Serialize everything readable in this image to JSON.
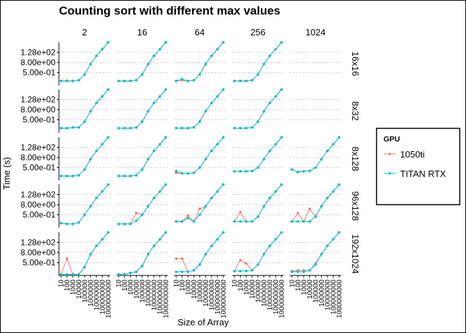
{
  "chart_data": {
    "type": "line",
    "title": "Counting sort with different max values",
    "xlabel": "Size of Array",
    "ylabel": "Time (s)",
    "x": [
      "10",
      "100",
      "1000",
      "10000",
      "100000",
      "1000000",
      "10000000",
      "100000000",
      "1000000000"
    ],
    "y_ticks": [
      "5.00e-01",
      "8.00e+00",
      "1.28e+02"
    ],
    "y_scale": "log",
    "grid": "horizontal dotted",
    "col_facets": [
      "2",
      "16",
      "64",
      "256",
      "1024"
    ],
    "row_facets": [
      "16x16",
      "8x32",
      "8x128",
      "96x128",
      "192x1024"
    ],
    "legend": {
      "title": "GPU",
      "position": "right",
      "entries": [
        "1050ti",
        "TITAN RTX"
      ]
    },
    "colors": {
      "1050ti": "#f8766d",
      "TITAN RTX": "#00bfc4",
      "grid": "#bdbdbd",
      "text": "#000000"
    },
    "panels": [
      [
        {
          "1050ti": [
            0.05,
            0.055,
            0.05,
            0.06,
            0.3,
            5,
            50,
            300,
            2000
          ],
          "TITAN RTX": [
            0.05,
            0.05,
            0.05,
            0.06,
            0.3,
            5,
            50,
            300,
            2000
          ]
        },
        {
          "1050ti": [
            0.05,
            0.05,
            0.05,
            0.06,
            0.3,
            5,
            50,
            300,
            2000
          ],
          "TITAN RTX": [
            0.05,
            0.05,
            0.05,
            0.06,
            0.3,
            5,
            50,
            300,
            2000
          ]
        },
        {
          "1050ti": [
            0.05,
            0.06,
            0.05,
            0.06,
            0.3,
            5,
            50,
            300,
            2000
          ],
          "TITAN RTX": [
            0.05,
            0.08,
            0.05,
            0.06,
            0.3,
            5,
            50,
            300,
            2000
          ]
        },
        {
          "1050ti": [
            0.05,
            0.05,
            0.05,
            0.06,
            0.3,
            5,
            50,
            300,
            2000
          ],
          "TITAN RTX": [
            0.05,
            0.05,
            0.05,
            0.06,
            0.3,
            5,
            50,
            300,
            2000
          ]
        },
        {
          "1050ti": [
            null,
            null,
            null,
            null,
            null,
            null,
            null,
            null,
            null
          ],
          "TITAN RTX": [
            null,
            null,
            null,
            null,
            null,
            null,
            null,
            null,
            null
          ]
        }
      ],
      [
        {
          "1050ti": [
            0.05,
            0.05,
            0.06,
            0.06,
            0.3,
            5,
            50,
            300,
            2000
          ],
          "TITAN RTX": [
            0.05,
            0.05,
            0.06,
            0.06,
            0.3,
            5,
            50,
            300,
            2000
          ]
        },
        {
          "1050ti": [
            0.05,
            0.05,
            0.05,
            0.06,
            0.3,
            5,
            50,
            300,
            2000
          ],
          "TITAN RTX": [
            0.05,
            0.05,
            0.05,
            0.06,
            0.3,
            5,
            50,
            300,
            2000
          ]
        },
        {
          "1050ti": [
            0.05,
            0.05,
            0.05,
            0.06,
            0.3,
            5,
            50,
            300,
            2000
          ],
          "TITAN RTX": [
            0.05,
            0.05,
            0.05,
            0.06,
            0.3,
            5,
            50,
            300,
            2000
          ]
        },
        {
          "1050ti": [
            0.05,
            0.05,
            0.05,
            0.06,
            0.3,
            5,
            50,
            300,
            2000
          ],
          "TITAN RTX": [
            0.05,
            0.05,
            0.05,
            0.06,
            0.3,
            5,
            50,
            300,
            2000
          ]
        },
        {
          "1050ti": [
            null,
            null,
            null,
            null,
            null,
            null,
            null,
            null,
            null
          ],
          "TITAN RTX": [
            null,
            null,
            null,
            null,
            null,
            null,
            null,
            null,
            null
          ]
        }
      ],
      [
        {
          "1050ti": [
            0.05,
            0.05,
            0.05,
            0.06,
            0.3,
            5,
            50,
            300,
            2000
          ],
          "TITAN RTX": [
            0.05,
            0.05,
            0.05,
            0.06,
            0.3,
            5,
            50,
            300,
            2000
          ]
        },
        {
          "1050ti": [
            0.05,
            0.05,
            0.05,
            0.06,
            0.3,
            5,
            50,
            300,
            2000
          ],
          "TITAN RTX": [
            0.05,
            0.05,
            0.05,
            0.06,
            0.3,
            5,
            50,
            300,
            2000
          ]
        },
        {
          "1050ti": [
            0.12,
            0.1,
            0.1,
            0.12,
            0.5,
            5,
            50,
            300,
            2000
          ],
          "TITAN RTX": [
            0.2,
            0.1,
            0.1,
            0.12,
            0.5,
            5,
            50,
            300,
            2000
          ]
        },
        {
          "1050ti": [
            0.18,
            0.18,
            0.18,
            0.2,
            0.5,
            5,
            50,
            300,
            2000
          ],
          "TITAN RTX": [
            0.18,
            0.18,
            0.18,
            0.2,
            0.5,
            5,
            50,
            300,
            2000
          ]
        },
        {
          "1050ti": [
            0.3,
            0.15,
            0.18,
            0.2,
            0.5,
            5,
            50,
            300,
            2000
          ],
          "TITAN RTX": [
            0.3,
            0.15,
            0.18,
            0.2,
            0.5,
            5,
            50,
            300,
            2000
          ]
        }
      ],
      [
        {
          "1050ti": [
            0.05,
            0.04,
            0.04,
            0.06,
            0.5,
            5,
            50,
            300,
            2000
          ],
          "TITAN RTX": [
            0.05,
            0.04,
            0.04,
            0.06,
            0.5,
            5,
            50,
            300,
            2000
          ]
        },
        {
          "1050ti": [
            0.04,
            0.04,
            0.04,
            0.8,
            0.5,
            5,
            50,
            300,
            2000
          ],
          "TITAN RTX": [
            0.04,
            0.04,
            0.04,
            0.1,
            0.5,
            5,
            50,
            300,
            2000
          ]
        },
        {
          "1050ti": [
            0.08,
            0.08,
            0.4,
            0.08,
            2.5,
            5,
            50,
            300,
            2000
          ],
          "TITAN RTX": [
            0.08,
            0.08,
            0.2,
            0.08,
            0.5,
            5,
            50,
            300,
            2000
          ]
        },
        {
          "1050ti": [
            0.08,
            1.0,
            0.08,
            0.08,
            0.3,
            5,
            50,
            300,
            2000
          ],
          "TITAN RTX": [
            0.08,
            0.08,
            0.08,
            0.08,
            0.3,
            5,
            50,
            300,
            2000
          ]
        },
        {
          "1050ti": [
            0.08,
            0.8,
            0.08,
            2.5,
            0.3,
            5,
            50,
            300,
            2000
          ],
          "TITAN RTX": [
            0.08,
            0.08,
            0.08,
            0.08,
            0.3,
            5,
            50,
            300,
            2000
          ]
        }
      ],
      [
        {
          "1050ti": [
            0.02,
            1.5,
            0.02,
            0.02,
            0.15,
            5,
            50,
            300,
            2000
          ],
          "TITAN RTX": [
            0.02,
            0.02,
            0.02,
            0.02,
            0.15,
            5,
            50,
            300,
            2000
          ]
        },
        {
          "1050ti": [
            0.02,
            0.02,
            0.03,
            0.04,
            0.2,
            5,
            50,
            300,
            2000
          ],
          "TITAN RTX": [
            0.02,
            0.02,
            0.03,
            0.04,
            0.2,
            5,
            50,
            300,
            2000
          ]
        },
        {
          "1050ti": [
            1.5,
            1.5,
            0.04,
            0.06,
            0.3,
            5,
            50,
            300,
            2000
          ],
          "TITAN RTX": [
            0.04,
            0.04,
            0.04,
            0.06,
            0.3,
            5,
            50,
            300,
            2000
          ]
        },
        {
          "1050ti": [
            0.05,
            1.0,
            0.4,
            0.06,
            0.3,
            5,
            50,
            300,
            2000
          ],
          "TITAN RTX": [
            0.05,
            0.05,
            0.05,
            0.06,
            0.3,
            5,
            50,
            300,
            2000
          ]
        },
        {
          "1050ti": [
            0.05,
            0.06,
            0.06,
            0.06,
            0.4,
            5,
            50,
            300,
            2000
          ],
          "TITAN RTX": [
            0.04,
            0.04,
            0.04,
            0.06,
            0.3,
            5,
            50,
            300,
            2000
          ]
        }
      ]
    ]
  }
}
